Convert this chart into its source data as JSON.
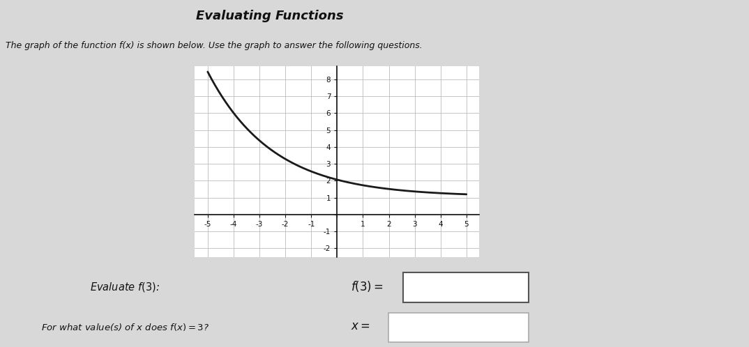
{
  "title": "Evaluating Functions",
  "subtitle": "The graph of the function f(x) is shown below. Use the graph to answer the following questions.",
  "curve_color": "#1a1a1a",
  "curve_linewidth": 2.0,
  "bg_color": "#d8d8d8",
  "content_bg": "#e8e8e8",
  "plot_bg_color": "#ffffff",
  "grid_color": "#bbbbbb",
  "row1_label": "Evaluate $f(3)$:",
  "row2_label": "For what value(s) of $x$ does $f(x) = 3$?",
  "orange_color": "#e87040",
  "table_line_color": "#aaaaaa",
  "white_area": "#f0f0f0"
}
